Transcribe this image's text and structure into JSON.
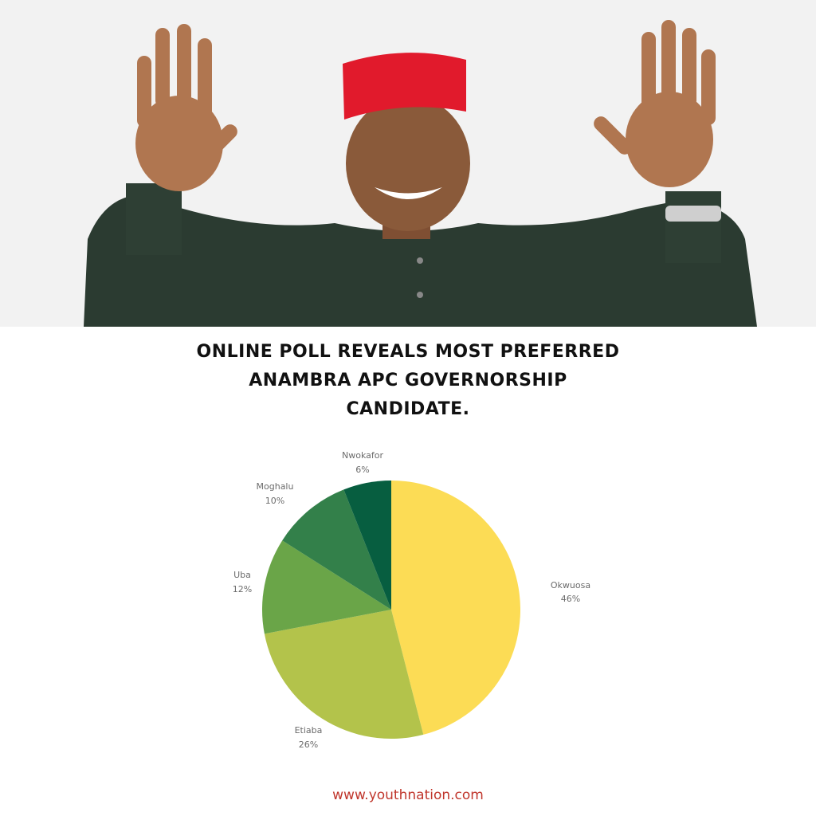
{
  "title_lines": [
    "ONLINE POLL REVEALS MOST PREFERRED",
    "ANAMBRA APC GOVERNORSHIP",
    "CANDIDATE."
  ],
  "footer_url": "www.youthnation.com",
  "photo": {
    "description_icon": "candidate-photo"
  },
  "chart_data": {
    "type": "pie",
    "start": "top",
    "direction": "clockwise",
    "categories": [
      "Okwuosa",
      "Etiaba",
      "Uba",
      "Moghalu",
      "Nwokafor"
    ],
    "values": [
      46,
      26,
      12,
      10,
      6
    ],
    "labels": [
      "46%",
      "26%",
      "12%",
      "10%",
      "6%"
    ],
    "colors": [
      "#fcdc55",
      "#b3c34b",
      "#6aa548",
      "#33804a",
      "#075e40"
    ],
    "legend": "none"
  }
}
